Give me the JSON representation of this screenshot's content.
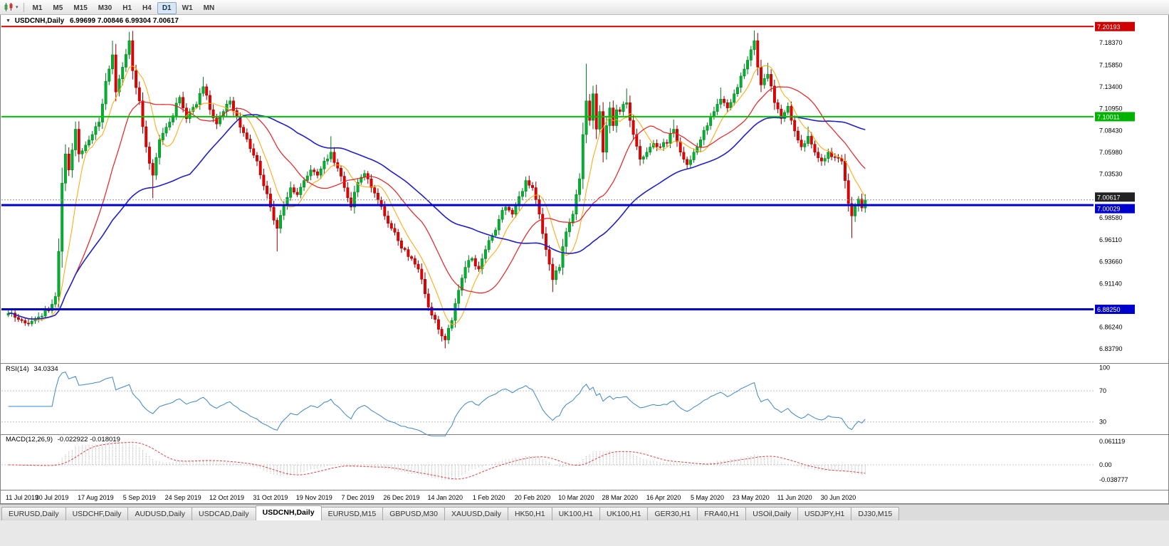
{
  "toolbar": {
    "timeframes": [
      "M1",
      "M5",
      "M15",
      "M30",
      "H1",
      "H4",
      "D1",
      "W1",
      "MN"
    ],
    "active_timeframe": "D1"
  },
  "chart": {
    "symbol_timeframe": "USDCNH,Daily",
    "ohlc": "6.99699 7.00846 6.99304 7.00617",
    "open": "6.99699",
    "high": "7.00846",
    "low": "6.99304",
    "close": "7.00617"
  },
  "price_axis": {
    "labels": [
      "7.18370",
      "7.15850",
      "7.13400",
      "7.10950",
      "7.08430",
      "7.05980",
      "7.03530",
      "6.98580",
      "6.96110",
      "6.93660",
      "6.91140",
      "6.86240",
      "6.83790"
    ],
    "tags": [
      {
        "value": "7.20193",
        "price": 7.20193,
        "color": "#D00000",
        "dy": 0
      },
      {
        "value": "7.10011",
        "price": 7.10011,
        "color": "#00B200",
        "dy": 0
      },
      {
        "value": "7.00617",
        "price": 7.00617,
        "color": "#222222",
        "dy": -4
      },
      {
        "value": "7.00029",
        "price": 7.00029,
        "color": "#0000CC",
        "dy": 5
      },
      {
        "value": "6.88250",
        "price": 6.8825,
        "color": "#0000CC",
        "dy": 0
      }
    ]
  },
  "hlines": [
    {
      "price": 7.20193,
      "color": "#D00000",
      "width": 2,
      "dash": "",
      "name": "resistance-line"
    },
    {
      "price": 7.10011,
      "color": "#00C000",
      "width": 2,
      "dash": "",
      "name": "mid-level-line"
    },
    {
      "price": 7.00617,
      "color": "#909090",
      "width": 1,
      "dash": "2 2",
      "name": "current-price-line"
    },
    {
      "price": 7.00029,
      "color": "#0000CC",
      "width": 3,
      "dash": "",
      "name": "support-line-upper"
    },
    {
      "price": 6.8825,
      "color": "#0000CC",
      "width": 3,
      "dash": "",
      "name": "support-line-lower"
    }
  ],
  "rsi": {
    "title": "RSI(14)",
    "value": "34.0334",
    "period": 14,
    "line_color": "#3E86C8",
    "levels": [
      {
        "label": "100",
        "value": 100
      },
      {
        "label": "70",
        "value": 70
      },
      {
        "label": "30",
        "value": 30
      }
    ]
  },
  "macd": {
    "title": "MACD(12,26,9)",
    "values": "-0.022922 -0.018019",
    "fast": 12,
    "slow": 26,
    "signal": 9,
    "histogram_color": "#ABABAB",
    "signal_color": "#E04040",
    "axis": [
      {
        "label": "0.061119",
        "value": 0.061119
      },
      {
        "label": "0.00",
        "value": 0
      },
      {
        "label": "-0.038777",
        "value": -0.038777
      }
    ]
  },
  "tabs": {
    "active_index": 4,
    "items": [
      "EURUSD,Daily",
      "USDCHF,Daily",
      "AUDUSD,Daily",
      "USDCAD,Daily",
      "USDCNH,Daily",
      "EURUSD,M15",
      "GBPUSD,M30",
      "XAUUSD,Daily",
      "HK50,H1",
      "UK100,H1",
      "UK100,H1",
      "GER30,H1",
      "FRA40,H1",
      "USOil,Daily",
      "USDJPY,H1",
      "DJ30,M15"
    ]
  },
  "chart_data": {
    "type": "candlestick",
    "symbol": "USDCNH",
    "timeframe": "Daily",
    "candle_count": 256,
    "y_range": [
      6.8379,
      7.2019
    ],
    "up_color": "#00B22D",
    "down_color": "#E60000",
    "up_stroke": "#007A1E",
    "down_stroke": "#8F0000",
    "moving_averages": [
      {
        "period": 8,
        "color": "#FFA500",
        "width": 1
      },
      {
        "period": 21,
        "color": "#E82020",
        "width": 1.2
      },
      {
        "period": 55,
        "color": "#2020C8",
        "width": 1.6
      }
    ],
    "x_tick_labels": [
      "11 Jul 2019",
      "30 Jul 2019",
      "17 Aug 2019",
      "5 Sep 2019",
      "24 Sep 2019",
      "12 Oct 2019",
      "31 Oct 2019",
      "19 Nov 2019",
      "7 Dec 2019",
      "26 Dec 2019",
      "14 Jan 2020",
      "1 Feb 2020",
      "20 Feb 2020",
      "10 Mar 2020",
      "28 Mar 2020",
      "16 Apr 2020",
      "5 May 2020",
      "23 May 2020",
      "11 Jun 2020",
      "30 Jun 2020"
    ],
    "anchors": [
      [
        0,
        6.878
      ],
      [
        3,
        6.871
      ],
      [
        6,
        6.866
      ],
      [
        9,
        6.874
      ],
      [
        12,
        6.881
      ],
      [
        14,
        6.897
      ],
      [
        15,
        6.948
      ],
      [
        16,
        7.025
      ],
      [
        17,
        7.058
      ],
      [
        18,
        7.04
      ],
      [
        20,
        7.086
      ],
      [
        21,
        7.058
      ],
      [
        23,
        7.068
      ],
      [
        25,
        7.08
      ],
      [
        27,
        7.094
      ],
      [
        29,
        7.14
      ],
      [
        31,
        7.17,
        7.186
      ],
      [
        32,
        7.128
      ],
      [
        34,
        7.156
      ],
      [
        36,
        7.186,
        7.196
      ],
      [
        37,
        7.152
      ],
      [
        39,
        7.118
      ],
      [
        41,
        7.066
      ],
      [
        43,
        7.034,
        null,
        7.008
      ],
      [
        45,
        7.074
      ],
      [
        48,
        7.094
      ],
      [
        51,
        7.122
      ],
      [
        53,
        7.098
      ],
      [
        56,
        7.114
      ],
      [
        58,
        7.134,
        7.145
      ],
      [
        60,
        7.108
      ],
      [
        62,
        7.092
      ],
      [
        64,
        7.106
      ],
      [
        66,
        7.118
      ],
      [
        68,
        7.1
      ],
      [
        70,
        7.082
      ],
      [
        72,
        7.064
      ],
      [
        74,
        7.05
      ],
      [
        76,
        7.022
      ],
      [
        78,
        6.998
      ],
      [
        80,
        6.974,
        null,
        6.948
      ],
      [
        82,
        7.0
      ],
      [
        84,
        7.02
      ],
      [
        86,
        7.012
      ],
      [
        88,
        7.028
      ],
      [
        90,
        7.04
      ],
      [
        92,
        7.034
      ],
      [
        94,
        7.05
      ],
      [
        96,
        7.06,
        7.078
      ],
      [
        98,
        7.042
      ],
      [
        100,
        7.02
      ],
      [
        102,
        6.998
      ],
      [
        104,
        7.026
      ],
      [
        106,
        7.036
      ],
      [
        108,
        7.02
      ],
      [
        110,
        7.006
      ],
      [
        112,
        6.988
      ],
      [
        114,
        6.974
      ],
      [
        116,
        6.96
      ],
      [
        118,
        6.95
      ],
      [
        120,
        6.94
      ],
      [
        122,
        6.928
      ],
      [
        124,
        6.9
      ],
      [
        126,
        6.876
      ],
      [
        128,
        6.86
      ],
      [
        130,
        6.848,
        null,
        6.8385
      ],
      [
        132,
        6.87
      ],
      [
        134,
        6.904
      ],
      [
        136,
        6.93
      ],
      [
        138,
        6.94
      ],
      [
        140,
        6.928
      ],
      [
        142,
        6.95
      ],
      [
        144,
        6.966
      ],
      [
        146,
        6.984
      ],
      [
        148,
        6.998
      ],
      [
        150,
        6.99
      ],
      [
        152,
        7.01
      ],
      [
        154,
        7.028
      ],
      [
        156,
        7.02
      ],
      [
        158,
        6.99
      ],
      [
        160,
        6.95
      ],
      [
        162,
        6.916,
        null,
        6.902
      ],
      [
        164,
        6.93
      ],
      [
        166,
        6.97
      ],
      [
        168,
        6.99
      ],
      [
        170,
        7.03
      ],
      [
        171,
        7.08
      ],
      [
        172,
        7.118,
        7.16
      ],
      [
        173,
        7.096
      ],
      [
        174,
        7.126
      ],
      [
        175,
        7.086
      ],
      [
        176,
        7.106
      ],
      [
        177,
        7.06
      ],
      [
        178,
        7.09
      ],
      [
        179,
        7.11
      ],
      [
        180,
        7.09
      ],
      [
        181,
        7.108
      ],
      [
        182,
        7.106
      ],
      [
        184,
        7.116,
        7.132
      ],
      [
        186,
        7.08
      ],
      [
        188,
        7.052
      ],
      [
        190,
        7.06
      ],
      [
        192,
        7.07
      ],
      [
        194,
        7.066
      ],
      [
        196,
        7.07
      ],
      [
        198,
        7.086,
        7.097
      ],
      [
        200,
        7.06
      ],
      [
        202,
        7.046
      ],
      [
        204,
        7.06
      ],
      [
        206,
        7.074
      ],
      [
        208,
        7.09
      ],
      [
        210,
        7.106
      ],
      [
        212,
        7.12,
        7.133
      ],
      [
        214,
        7.11
      ],
      [
        216,
        7.126
      ],
      [
        218,
        7.146
      ],
      [
        220,
        7.164
      ],
      [
        222,
        7.186,
        7.1975
      ],
      [
        223,
        7.156
      ],
      [
        224,
        7.136
      ],
      [
        226,
        7.148,
        7.161
      ],
      [
        228,
        7.116
      ],
      [
        230,
        7.098
      ],
      [
        232,
        7.112
      ],
      [
        234,
        7.084
      ],
      [
        236,
        7.066
      ],
      [
        238,
        7.078,
        7.089
      ],
      [
        240,
        7.06
      ],
      [
        242,
        7.05
      ],
      [
        244,
        7.06
      ],
      [
        246,
        7.054
      ],
      [
        248,
        7.05
      ],
      [
        249,
        7.028
      ],
      [
        250,
        7.002
      ],
      [
        251,
        6.988,
        null,
        6.963
      ],
      [
        252,
        6.999
      ],
      [
        253,
        7.007
      ],
      [
        254,
        6.997
      ],
      [
        255,
        7.00617,
        7.00846,
        6.99304
      ]
    ]
  }
}
